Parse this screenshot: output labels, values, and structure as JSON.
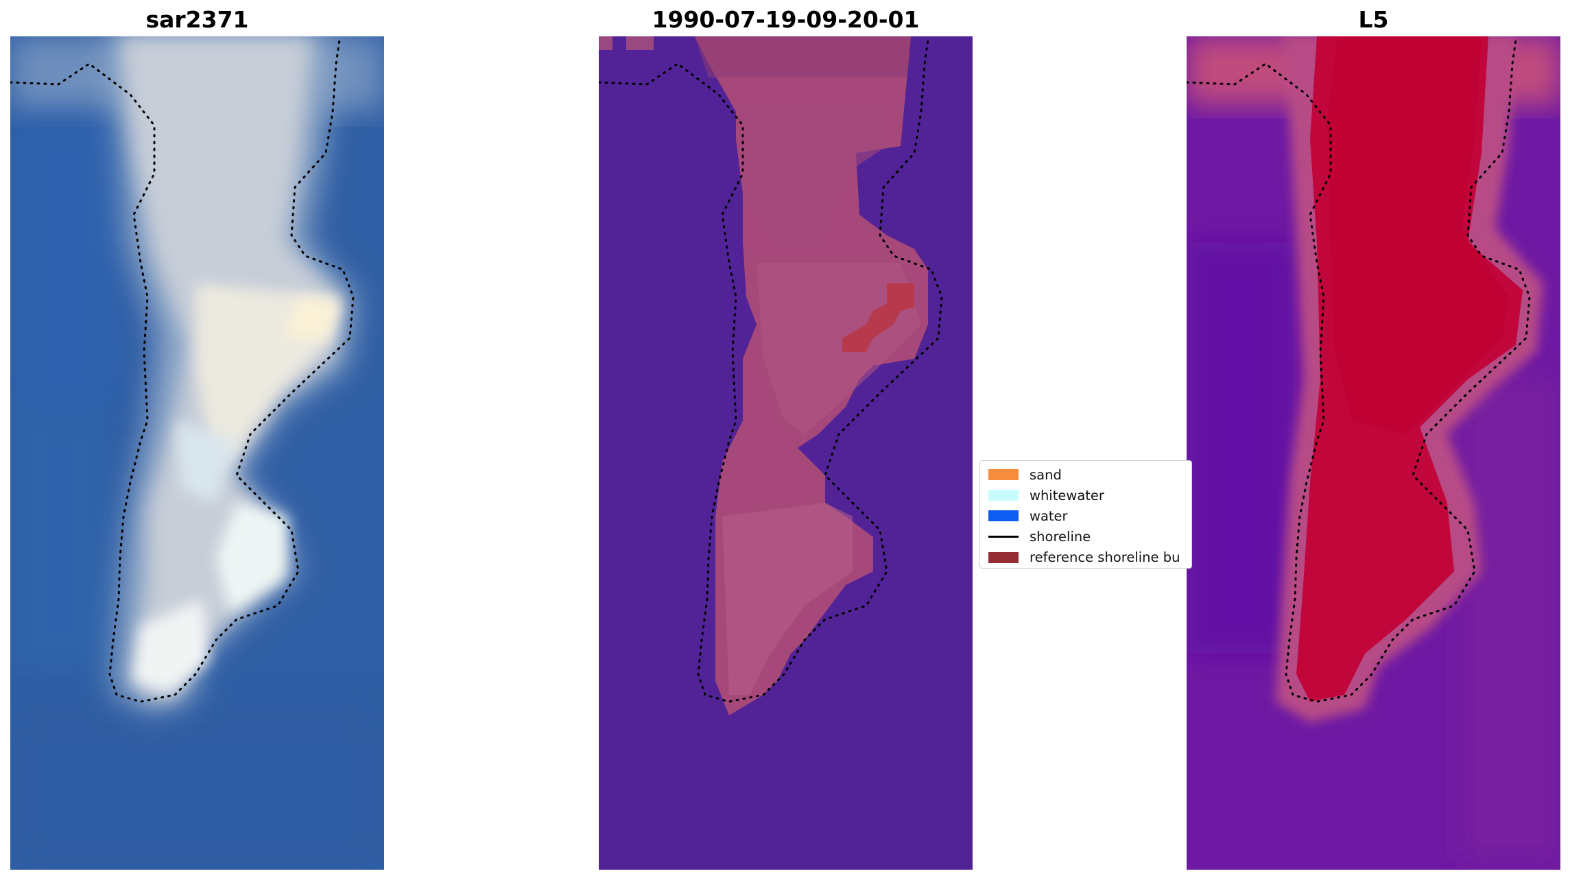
{
  "panels": [
    {
      "title": "sar2371"
    },
    {
      "title": "1990-07-19-09-20-01"
    },
    {
      "title": "L5"
    }
  ],
  "legend": {
    "items": [
      {
        "label": "sand",
        "color": "#f58d3c",
        "kind": "patch"
      },
      {
        "label": "whitewater",
        "color": "#c9fdfd",
        "kind": "patch"
      },
      {
        "label": "water",
        "color": "#0f5cf2",
        "kind": "patch"
      },
      {
        "label": "shoreline",
        "color": "#000000",
        "kind": "line"
      },
      {
        "label": "reference shoreline bu",
        "color": "#962d35",
        "kind": "patch"
      }
    ]
  },
  "colors": {
    "water_blue": "#2f5ea4",
    "class_water_purple": "#522396",
    "sand_pink": "#a6497a",
    "buffer_red": "#b63a4c",
    "index_purple": "#6e19a3",
    "index_red": "#c0063a",
    "shoreline_dots": "#000000"
  }
}
